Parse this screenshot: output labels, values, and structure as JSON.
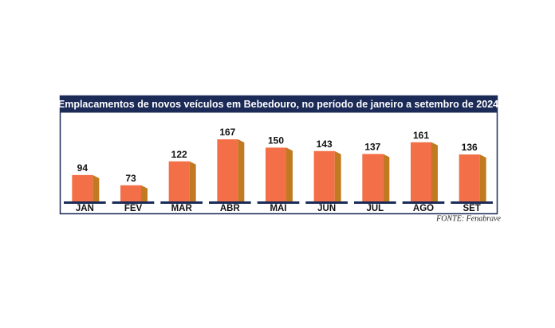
{
  "chart_data": {
    "type": "bar3d",
    "title": "Emplacamentos de novos veículos em Bebedouro, no período de janeiro a setembro de 2024",
    "categories": [
      "JAN",
      "FEV",
      "MAR",
      "ABR",
      "MAI",
      "JUN",
      "JUL",
      "AGO",
      "SET"
    ],
    "values": [
      94,
      73,
      122,
      167,
      150,
      143,
      137,
      161,
      136
    ],
    "color": "#f26f47",
    "side_color": "#c27a22",
    "ylim": [
      40,
      180
    ],
    "source": "FONTE: Fenabrave"
  }
}
